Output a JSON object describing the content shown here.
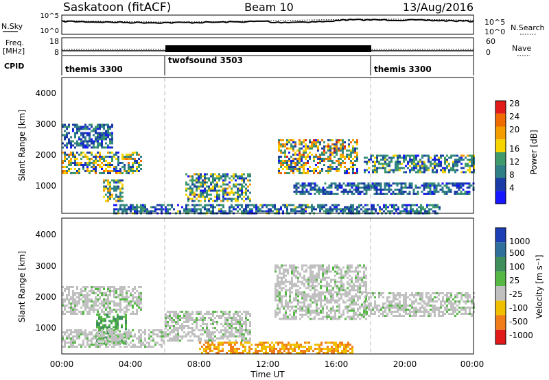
{
  "header": {
    "title": "Saskatoon (fitACF)",
    "beam": "Beam 10",
    "date": "13/Aug/2016"
  },
  "side_labels": {
    "nsky": "N.Sky",
    "freq_line1": "Freq.",
    "freq_line2": "[MHz]",
    "cpid": "CPID",
    "nsearch": "N.Search",
    "nave": "Nave"
  },
  "cpid_segments": [
    {
      "label": "themis 3300",
      "start_hour": 0,
      "end_hour": 6
    },
    {
      "label": "twofsound 3503",
      "start_hour": 6,
      "end_hour": 18
    },
    {
      "label": "themis 3300",
      "start_hour": 18,
      "end_hour": 24
    }
  ],
  "noise_panel": {
    "left_ticks": [
      "10^5",
      "10^0"
    ],
    "right_ticks": [
      "10^5",
      "10^0"
    ]
  },
  "freq_panel": {
    "left_ticks": [
      "18",
      "8"
    ],
    "right_ticks": [
      "60",
      "0"
    ]
  },
  "colors": {
    "power_scale": [
      "#1616ff",
      "#1a3aa8",
      "#2e7f86",
      "#3f9a6a",
      "#f7d400",
      "#f39d00",
      "#ef6c00",
      "#e31a1a"
    ],
    "velocity_scale": [
      "#1c3fb5",
      "#2e6f9c",
      "#3f8f5c",
      "#55b844",
      "#c0c0c0",
      "#f0c000",
      "#f07d1a",
      "#e31a1a"
    ],
    "ground_scatter": "#c0c0c0"
  },
  "chart_data": [
    {
      "type": "heatmap",
      "panel": "power",
      "ylabel": "Slant Range [km]",
      "yticks": [
        "1000",
        "2000",
        "3000",
        "4000"
      ],
      "ylim": [
        200,
        4600
      ],
      "xlim": [
        0,
        24
      ],
      "colorbar": {
        "label": "Power [dB]",
        "ticks": [
          "4",
          "8",
          "12",
          "16",
          "20",
          "24",
          "28"
        ]
      },
      "echo_regions": [
        {
          "t0": 0.0,
          "t1": 4.6,
          "r0": 1500,
          "r1": 2200,
          "peak": 20
        },
        {
          "t0": 2.4,
          "t1": 3.6,
          "r0": 600,
          "r1": 1300,
          "peak": 18
        },
        {
          "t0": 0.0,
          "t1": 3.0,
          "r0": 2300,
          "r1": 3100,
          "peak": 8
        },
        {
          "t0": 7.2,
          "t1": 11.0,
          "r0": 600,
          "r1": 1500,
          "peak": 16
        },
        {
          "t0": 12.6,
          "t1": 17.2,
          "r0": 1500,
          "r1": 2600,
          "peak": 24
        },
        {
          "t0": 17.6,
          "t1": 24.0,
          "r0": 1500,
          "r1": 2100,
          "peak": 14
        },
        {
          "t0": 13.5,
          "t1": 24.0,
          "r0": 800,
          "r1": 1200,
          "peak": 8
        },
        {
          "t0": 3.0,
          "t1": 22.0,
          "r0": 200,
          "r1": 500,
          "peak": 10
        }
      ]
    },
    {
      "type": "heatmap",
      "panel": "velocity",
      "ylabel": "Slant Range [km]",
      "xlabel": "Time UT",
      "xticks": [
        "00:00",
        "04:00",
        "08:00",
        "12:00",
        "16:00",
        "20:00",
        "00:00"
      ],
      "yticks": [
        "1000",
        "2000",
        "3000",
        "4000"
      ],
      "ylim": [
        200,
        4600
      ],
      "xlim": [
        0,
        24
      ],
      "colorbar": {
        "label": "Velocity [m s⁻¹]",
        "ticks": [
          "1000",
          "500",
          "100",
          "25",
          "-25",
          "-100",
          "-500",
          "-1000"
        ]
      },
      "echo_regions": [
        {
          "t0": 0.0,
          "t1": 4.6,
          "r0": 1500,
          "r1": 2400,
          "kind": "ground"
        },
        {
          "t0": 2.0,
          "t1": 3.8,
          "r0": 500,
          "r1": 1500,
          "kind": "positive"
        },
        {
          "t0": 6.0,
          "t1": 11.0,
          "r0": 600,
          "r1": 1600,
          "kind": "ground"
        },
        {
          "t0": 8.0,
          "t1": 17.0,
          "r0": 200,
          "r1": 600,
          "kind": "negative"
        },
        {
          "t0": 12.4,
          "t1": 17.8,
          "r0": 1300,
          "r1": 3100,
          "kind": "ground"
        },
        {
          "t0": 17.6,
          "t1": 24.0,
          "r0": 1400,
          "r1": 2200,
          "kind": "ground"
        },
        {
          "t0": 0.0,
          "t1": 6.0,
          "r0": 400,
          "r1": 1000,
          "kind": "ground"
        }
      ]
    }
  ]
}
